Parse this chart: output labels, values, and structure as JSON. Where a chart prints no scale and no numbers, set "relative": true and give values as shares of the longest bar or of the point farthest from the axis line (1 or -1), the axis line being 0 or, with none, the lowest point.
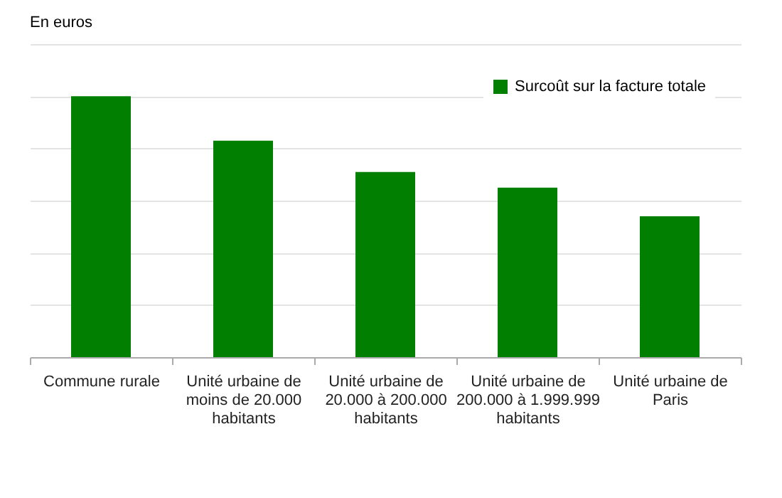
{
  "chart_data": {
    "type": "bar",
    "ylabel": "En euros",
    "categories": [
      "Commune rurale",
      "Unité urbaine de moins de 20.000 habitants",
      "Unité urbaine de 20.000 à 200.000 habitants",
      "Unité urbaine de 200.000 à 1.999.999 habitants",
      "Unité urbaine de Paris"
    ],
    "series": [
      {
        "name": "Surcoût sur la facture totale",
        "color": "#007f00",
        "values": [
          1,
          0.83,
          0.71,
          0.65,
          0.54
        ]
      }
    ],
    "relative": true,
    "grid": "y",
    "legend": "top right"
  }
}
